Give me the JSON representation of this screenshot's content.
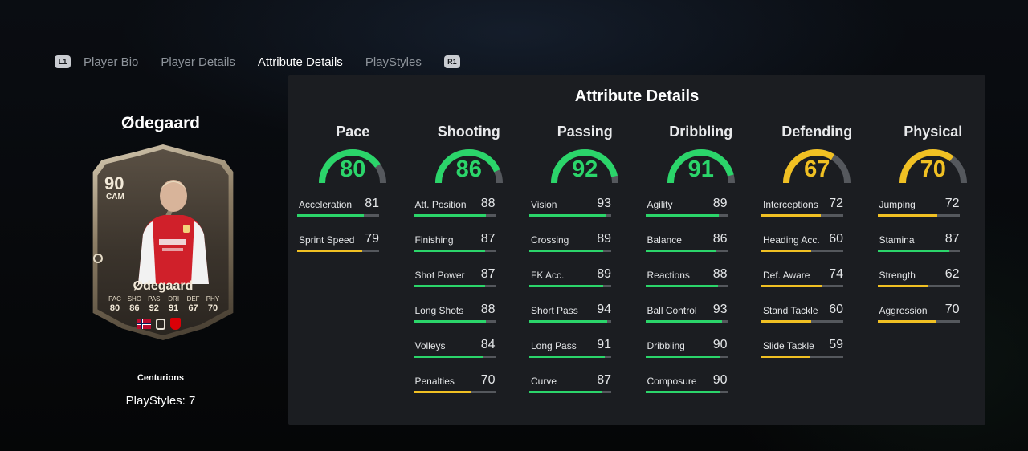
{
  "nav": {
    "left_hint": "L1",
    "right_hint": "R1",
    "tabs": [
      {
        "label": "Player Bio",
        "active": false
      },
      {
        "label": "Player Details",
        "active": false
      },
      {
        "label": "Attribute Details",
        "active": true
      },
      {
        "label": "PlayStyles",
        "active": false
      }
    ]
  },
  "player": {
    "name": "Ødegaard",
    "card": {
      "rating": "90",
      "position": "CAM",
      "name": "Ødegaard",
      "stats": [
        {
          "label": "PAC",
          "value": "80"
        },
        {
          "label": "SHO",
          "value": "86"
        },
        {
          "label": "PAS",
          "value": "92"
        },
        {
          "label": "DRI",
          "value": "91"
        },
        {
          "label": "DEF",
          "value": "67"
        },
        {
          "label": "PHY",
          "value": "70"
        }
      ]
    },
    "card_type": "Centurions",
    "playstyles": "PlayStyles: 7"
  },
  "panel": {
    "title": "Attribute Details",
    "colors": {
      "high": "#2bd56a",
      "mid": "#f0c023",
      "track": "#55585d"
    },
    "categories": [
      {
        "name": "Pace",
        "value": 80,
        "tier": "high",
        "stats": [
          {
            "label": "Acceleration",
            "value": 81
          },
          {
            "label": "Sprint Speed",
            "value": 79
          }
        ]
      },
      {
        "name": "Shooting",
        "value": 86,
        "tier": "high",
        "stats": [
          {
            "label": "Att. Position",
            "value": 88
          },
          {
            "label": "Finishing",
            "value": 87
          },
          {
            "label": "Shot Power",
            "value": 87
          },
          {
            "label": "Long Shots",
            "value": 88
          },
          {
            "label": "Volleys",
            "value": 84
          },
          {
            "label": "Penalties",
            "value": 70
          }
        ]
      },
      {
        "name": "Passing",
        "value": 92,
        "tier": "high",
        "stats": [
          {
            "label": "Vision",
            "value": 93
          },
          {
            "label": "Crossing",
            "value": 89
          },
          {
            "label": "FK Acc.",
            "value": 89
          },
          {
            "label": "Short Pass",
            "value": 94
          },
          {
            "label": "Long Pass",
            "value": 91
          },
          {
            "label": "Curve",
            "value": 87
          }
        ]
      },
      {
        "name": "Dribbling",
        "value": 91,
        "tier": "high",
        "stats": [
          {
            "label": "Agility",
            "value": 89
          },
          {
            "label": "Balance",
            "value": 86
          },
          {
            "label": "Reactions",
            "value": 88
          },
          {
            "label": "Ball Control",
            "value": 93
          },
          {
            "label": "Dribbling",
            "value": 90
          },
          {
            "label": "Composure",
            "value": 90
          }
        ]
      },
      {
        "name": "Defending",
        "value": 67,
        "tier": "mid",
        "stats": [
          {
            "label": "Interceptions",
            "value": 72
          },
          {
            "label": "Heading Acc.",
            "value": 60
          },
          {
            "label": "Def. Aware",
            "value": 74
          },
          {
            "label": "Stand Tackle",
            "value": 60
          },
          {
            "label": "Slide Tackle",
            "value": 59
          }
        ]
      },
      {
        "name": "Physical",
        "value": 70,
        "tier": "mid",
        "stats": [
          {
            "label": "Jumping",
            "value": 72
          },
          {
            "label": "Stamina",
            "value": 87
          },
          {
            "label": "Strength",
            "value": 62
          },
          {
            "label": "Aggression",
            "value": 70
          }
        ]
      }
    ]
  }
}
